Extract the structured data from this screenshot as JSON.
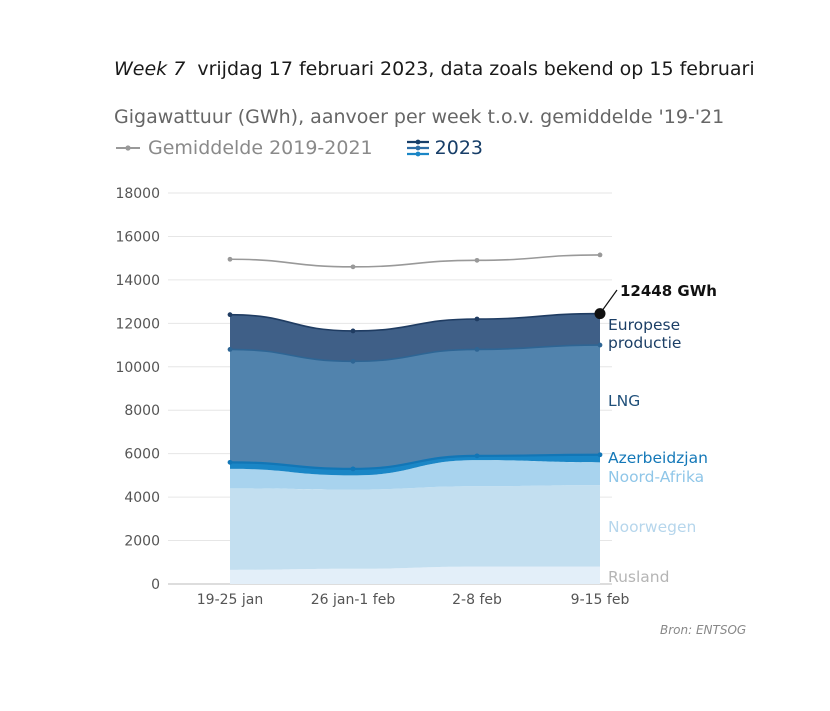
{
  "header": {
    "week": "Week 7",
    "date_text": "vrijdag 17 februari 2023, data zoals bekend op 15 februari"
  },
  "subtitle": "Gigawattuur (GWh), aanvoer per week t.o.v. gemiddelde '19-'21",
  "legend": {
    "average_label": "Gemiddelde 2019-2021",
    "current_label": "2023"
  },
  "source": "Bron: ENTSOG",
  "colors": {
    "average": "#999999",
    "rusland": "#e3eff9",
    "noorwegen": "#c3dff0",
    "noord_afrika": "#a8d3ee",
    "azerbeidzjan": "#1a86c6",
    "lng": "#5183ad",
    "europese_productie": "#3f5f87"
  },
  "chart_data": {
    "type": "area",
    "stacked": true,
    "categories": [
      "19-25 jan",
      "26 jan-1 feb",
      "2-8 feb",
      "9-15 feb"
    ],
    "ylim": [
      0,
      18000
    ],
    "yticks": [
      "0",
      "2000",
      "4000",
      "6000",
      "8000",
      "10000",
      "12000",
      "14000",
      "16000",
      "18000"
    ],
    "grid": true,
    "series": [
      {
        "name": "Rusland",
        "values": [
          650,
          700,
          800,
          800
        ]
      },
      {
        "name": "Noorwegen",
        "values": [
          3750,
          3650,
          3700,
          3750
        ]
      },
      {
        "name": "Noord-Afrika",
        "values": [
          900,
          650,
          1200,
          1050
        ]
      },
      {
        "name": "Azerbeidzjan",
        "values": [
          300,
          300,
          200,
          350
        ]
      },
      {
        "name": "LNG",
        "values": [
          5200,
          4950,
          4900,
          5050
        ]
      },
      {
        "name": "Europese productie",
        "values": [
          1600,
          1400,
          1400,
          1448
        ]
      }
    ],
    "average": {
      "name": "Gemiddelde 2019-2021",
      "values": [
        14950,
        14600,
        14900,
        15150
      ]
    },
    "total_annotation": "12448 GWh"
  }
}
